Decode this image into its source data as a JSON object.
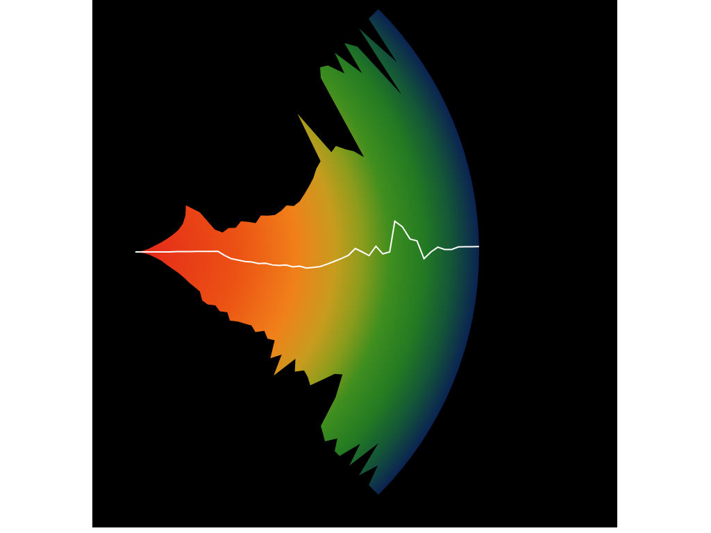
{
  "chart_data": {
    "type": "radial_waveform",
    "x": [
      0,
      2,
      4,
      6,
      8,
      10,
      12,
      14,
      16,
      18,
      20,
      22,
      24,
      26,
      28,
      30,
      32,
      34,
      36,
      38,
      40,
      42,
      44,
      46,
      48,
      50,
      52,
      54,
      56,
      58,
      60,
      62,
      64,
      66,
      68,
      70,
      72,
      74,
      76,
      78,
      80,
      82,
      84,
      86,
      88,
      90,
      92,
      94,
      96,
      98,
      100
    ],
    "xlim": [
      0,
      100
    ],
    "ylim": [
      -1,
      1
    ],
    "upper": [
      0,
      0.18,
      0.3,
      0.4,
      0.45,
      0.5,
      0.55,
      0.6,
      0.68,
      0.8,
      0.95,
      0.7,
      0.35,
      0.28,
      0.32,
      0.3,
      0.36,
      0.33,
      0.3,
      0.36,
      0.34,
      0.33,
      0.35,
      0.38,
      0.36,
      0.38,
      0.42,
      0.46,
      0.5,
      0.55,
      0.58,
      0.9,
      0.6,
      0.62,
      0.58,
      0.55,
      0.5,
      0.96,
      1,
      0.98,
      0.9,
      1,
      0.85,
      1,
      0.95,
      0.68,
      1,
      0.8,
      1,
      1,
      1
    ],
    "lower": [
      0,
      -0.15,
      -0.25,
      -0.35,
      -0.42,
      -0.5,
      -0.55,
      -0.58,
      -0.62,
      -0.66,
      -0.68,
      -0.7,
      -0.8,
      -0.8,
      -0.75,
      -0.78,
      -0.74,
      -0.8,
      -0.76,
      -0.74,
      -0.72,
      -0.75,
      -0.7,
      -0.74,
      -0.72,
      -0.85,
      -0.78,
      -0.93,
      -0.75,
      -0.82,
      -0.78,
      -0.8,
      -0.83,
      -0.76,
      -0.7,
      -0.68,
      -0.8,
      -0.96,
      -0.98,
      -1,
      -0.95,
      -1,
      -1,
      -0.9,
      -1,
      -0.85,
      -1,
      -0.92,
      -1,
      -1,
      -1
    ],
    "line": [
      0,
      0,
      0,
      0,
      0,
      0,
      0.01,
      0.01,
      0.01,
      0.01,
      0.01,
      0.01,
      0.01,
      -0.05,
      -0.09,
      -0.1,
      -0.11,
      -0.11,
      -0.12,
      -0.11,
      -0.12,
      -0.12,
      -0.11,
      -0.12,
      -0.11,
      -0.12,
      -0.11,
      -0.1,
      -0.08,
      -0.06,
      -0.04,
      -0.02,
      0.02,
      0,
      -0.02,
      0.03,
      -0.01,
      0,
      0.15,
      0.12,
      0.06,
      0.05,
      -0.03,
      0,
      0.02,
      0.01,
      0.01,
      0.02,
      0.02,
      0.02,
      0.02
    ],
    "tick_labels": false
  }
}
